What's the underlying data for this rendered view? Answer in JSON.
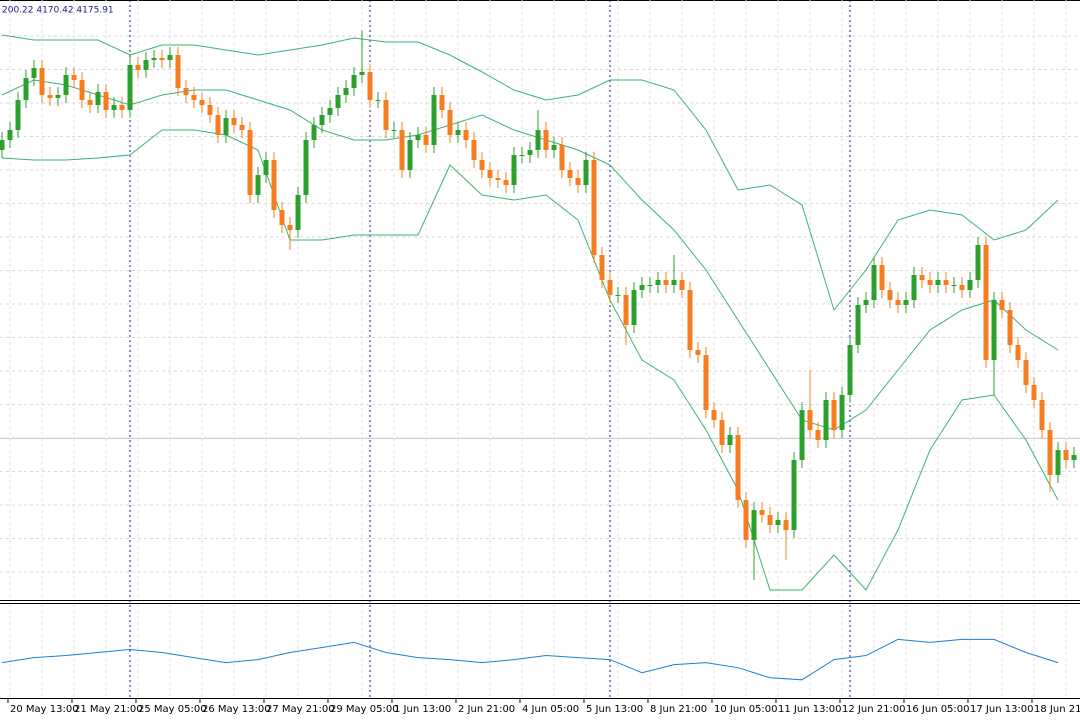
{
  "chart_data": {
    "type": "candlestick",
    "header": "200.22 4170.42 4175.91",
    "x_labels": [
      "20 May 13:00",
      "21 May 21:00",
      "25 May 05:00",
      "26 May 13:00",
      "27 May 21:00",
      "29 May 05:00",
      "1 Jun 13:00",
      "2 Jun 21:00",
      "4 Jun 05:00",
      "5 Jun 13:00",
      "8 Jun 21:00",
      "10 Jun 05:00",
      "11 Jun 13:00",
      "12 Jun 21:00",
      "16 Jun 05:00",
      "17 Jun 13:00",
      "18 Jun 21:00"
    ],
    "ylim": [
      0,
      600
    ],
    "grid": true,
    "up_color": "#2ca02c",
    "down_color": "#f57c1f",
    "open": [
      450,
      460,
      470,
      500,
      522,
      532,
      505,
      502,
      505,
      525,
      520,
      500,
      495,
      508,
      490,
      495,
      490,
      535,
      530,
      540,
      542,
      540,
      545,
      512,
      505,
      500,
      495,
      485,
      465,
      482,
      475,
      470,
      405,
      425,
      440,
      390,
      375,
      370,
      405,
      460,
      475,
      485,
      492,
      505,
      512,
      525,
      528,
      500,
      500,
      470,
      470,
      430,
      460,
      465,
      455,
      505,
      490,
      465,
      470,
      460,
      440,
      430,
      422,
      420,
      415,
      445,
      445,
      450,
      470,
      450,
      455,
      430,
      422,
      415,
      440,
      345,
      320,
      305,
      305,
      275,
      310,
      315,
      315,
      320,
      315,
      320,
      310,
      250,
      245,
      190,
      180,
      155,
      165,
      100,
      60,
      90,
      85,
      75,
      80,
      70,
      140,
      190,
      170,
      160,
      200,
      170,
      205,
      255,
      295,
      300,
      335,
      310,
      300,
      295,
      300,
      325,
      320,
      315,
      320,
      315,
      315,
      310,
      320,
      355,
      240,
      300,
      290,
      255,
      240,
      215,
      200,
      170,
      125,
      150,
      140
    ],
    "high": [
      468,
      478,
      508,
      530,
      540,
      540,
      513,
      513,
      533,
      533,
      528,
      508,
      516,
      516,
      503,
      503,
      543,
      543,
      548,
      550,
      550,
      553,
      553,
      520,
      513,
      508,
      503,
      493,
      490,
      490,
      483,
      478,
      433,
      448,
      448,
      398,
      383,
      413,
      468,
      483,
      493,
      500,
      513,
      520,
      533,
      570,
      536,
      508,
      508,
      478,
      478,
      468,
      473,
      473,
      513,
      513,
      498,
      478,
      478,
      468,
      448,
      438,
      430,
      428,
      453,
      453,
      458,
      490,
      478,
      463,
      463,
      438,
      430,
      448,
      448,
      353,
      328,
      313,
      313,
      318,
      323,
      323,
      328,
      328,
      345,
      328,
      318,
      258,
      253,
      198,
      188,
      173,
      173,
      108,
      98,
      98,
      93,
      88,
      88,
      148,
      198,
      230,
      178,
      208,
      208,
      213,
      263,
      303,
      308,
      343,
      343,
      318,
      308,
      308,
      333,
      333,
      328,
      328,
      328,
      323,
      323,
      328,
      363,
      363,
      308,
      308,
      298,
      263,
      248,
      223,
      208,
      178,
      158,
      158,
      153
    ],
    "low": [
      442,
      452,
      462,
      492,
      514,
      497,
      494,
      494,
      497,
      512,
      492,
      487,
      487,
      482,
      482,
      482,
      482,
      522,
      522,
      532,
      532,
      532,
      504,
      497,
      492,
      487,
      477,
      457,
      457,
      467,
      462,
      397,
      397,
      417,
      382,
      367,
      350,
      362,
      397,
      452,
      467,
      477,
      484,
      497,
      504,
      517,
      492,
      492,
      462,
      462,
      422,
      422,
      452,
      447,
      447,
      482,
      457,
      457,
      452,
      432,
      422,
      414,
      412,
      407,
      407,
      437,
      437,
      442,
      442,
      442,
      422,
      414,
      407,
      407,
      337,
      312,
      297,
      297,
      255,
      267,
      302,
      307,
      307,
      307,
      307,
      302,
      242,
      237,
      182,
      172,
      147,
      147,
      92,
      52,
      20,
      77,
      67,
      67,
      40,
      62,
      132,
      162,
      152,
      152,
      162,
      162,
      197,
      247,
      287,
      292,
      302,
      292,
      287,
      287,
      292,
      312,
      307,
      307,
      307,
      307,
      302,
      302,
      312,
      232,
      205,
      282,
      247,
      232,
      207,
      192,
      162,
      108,
      117,
      132,
      132
    ],
    "close": [
      460,
      470,
      500,
      522,
      532,
      505,
      502,
      505,
      525,
      520,
      500,
      495,
      508,
      490,
      495,
      490,
      535,
      530,
      540,
      542,
      540,
      545,
      512,
      505,
      500,
      495,
      485,
      465,
      482,
      475,
      470,
      405,
      425,
      440,
      390,
      375,
      370,
      405,
      460,
      475,
      485,
      492,
      505,
      512,
      525,
      528,
      500,
      500,
      470,
      470,
      430,
      460,
      465,
      455,
      505,
      490,
      465,
      470,
      460,
      440,
      430,
      422,
      420,
      415,
      445,
      445,
      450,
      470,
      450,
      455,
      430,
      422,
      415,
      440,
      345,
      320,
      305,
      305,
      275,
      310,
      315,
      315,
      320,
      315,
      320,
      310,
      250,
      245,
      190,
      180,
      155,
      165,
      100,
      60,
      90,
      85,
      75,
      80,
      70,
      140,
      190,
      170,
      160,
      200,
      170,
      205,
      255,
      295,
      300,
      335,
      310,
      300,
      295,
      300,
      325,
      320,
      315,
      320,
      315,
      315,
      310,
      320,
      355,
      240,
      300,
      290,
      255,
      240,
      215,
      200,
      170,
      125,
      150,
      140,
      145
    ],
    "band_step": 4,
    "bands": [
      {
        "color": "#3cb371",
        "values": [
          565,
          560,
          560,
          560,
          545,
          555,
          555,
          550,
          545,
          550,
          555,
          562,
          558,
          558,
          545,
          528,
          510,
          500,
          505,
          520,
          520,
          510,
          470,
          410,
          415,
          395,
          290,
          330,
          380,
          390,
          385,
          360,
          370,
          400
        ]
      },
      {
        "color": "#3cb371",
        "values": [
          505,
          520,
          515,
          505,
          495,
          505,
          510,
          510,
          500,
          490,
          470,
          460,
          460,
          465,
          475,
          485,
          470,
          460,
          450,
          435,
          400,
          370,
          330,
          280,
          230,
          180,
          170,
          190,
          230,
          270,
          290,
          300,
          270,
          250
        ]
      },
      {
        "color": "#3cb371",
        "values": [
          442,
          440,
          440,
          442,
          445,
          470,
          470,
          465,
          450,
          360,
          360,
          365,
          365,
          365,
          435,
          405,
          400,
          405,
          380,
          300,
          240,
          220,
          170,
          110,
          10,
          10,
          45,
          10,
          70,
          150,
          200,
          205,
          160,
          100
        ]
      }
    ],
    "indicator": {
      "color": "#1e7fd8",
      "ylim": [
        0,
        93
      ],
      "values": [
        35,
        40,
        42,
        45,
        48,
        45,
        40,
        35,
        38,
        45,
        50,
        55,
        45,
        40,
        38,
        35,
        38,
        42,
        40,
        38,
        25,
        33,
        35,
        30,
        20,
        18,
        38,
        42,
        58,
        55,
        58,
        58,
        45,
        35
      ]
    }
  }
}
